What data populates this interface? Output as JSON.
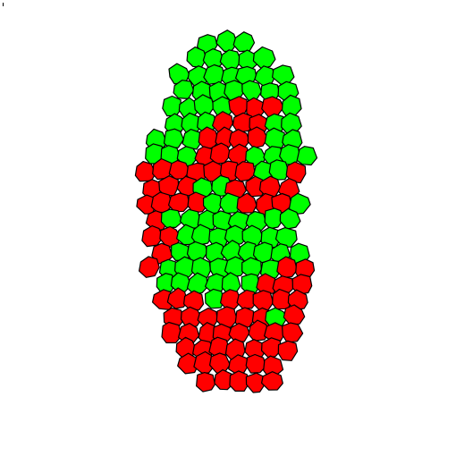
{
  "colors": {
    "background": "#ffffff",
    "green": "#00ff00",
    "red": "#ff0000",
    "membrane": "#000000"
  },
  "tissue": {
    "cell_states": [
      "green",
      "red"
    ]
  }
}
